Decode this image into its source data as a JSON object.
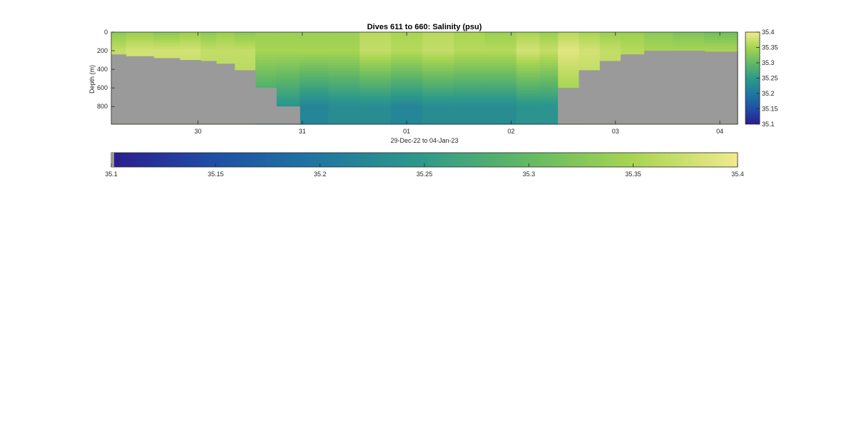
{
  "chart_data": {
    "type": "heatmap",
    "title": "Dives 611 to 660: Salinity (psu)",
    "xlabel": "29-Dec-22 to 04-Jan-23",
    "ylabel": "Depth (m)",
    "x_ticks": [
      "30",
      "31",
      "01",
      "02",
      "03",
      "04"
    ],
    "x_tick_days": [
      1,
      2,
      3,
      4,
      5,
      6
    ],
    "xlim_days": [
      0.17,
      6.17
    ],
    "ylim": [
      0,
      990
    ],
    "y_ticks": [
      0,
      200,
      400,
      600,
      800
    ],
    "y_reversed": true,
    "colorbar": {
      "min": 35.1,
      "max": 35.4,
      "ticks": [
        "35.1",
        "35.15",
        "35.2",
        "35.25",
        "35.3",
        "35.35",
        "35.4"
      ],
      "colormap": "parula-like",
      "colors": [
        "#2b1d8f",
        "#1f4fa6",
        "#1f78a0",
        "#2f9a8a",
        "#64b964",
        "#a7d552",
        "#f1ea8c"
      ]
    },
    "bathymetry_color": "#9a9a9a",
    "no_data_color": "#9a9a9a",
    "columns": [
      {
        "t": 0.17,
        "bottom": 240,
        "s_surface": 35.33,
        "s_200": 35.37,
        "s_800": 35.35
      },
      {
        "t": 0.45,
        "bottom": 260,
        "s_surface": 35.34,
        "s_200": 35.38,
        "s_800": 35.35
      },
      {
        "t": 0.7,
        "bottom": 280,
        "s_surface": 35.33,
        "s_200": 35.38,
        "s_800": 35.35
      },
      {
        "t": 0.95,
        "bottom": 300,
        "s_surface": 35.34,
        "s_200": 35.38,
        "s_800": 35.35
      },
      {
        "t": 1.1,
        "bottom": 310,
        "s_surface": 35.33,
        "s_200": 35.37,
        "s_800": 35.35
      },
      {
        "t": 1.25,
        "bottom": 340,
        "s_surface": 35.34,
        "s_200": 35.37,
        "s_800": 35.35
      },
      {
        "t": 1.45,
        "bottom": 410,
        "s_surface": 35.33,
        "s_200": 35.37,
        "s_800": 35.35
      },
      {
        "t": 1.65,
        "bottom": 600,
        "s_surface": 35.34,
        "s_200": 35.35,
        "s_800": 35.25
      },
      {
        "t": 1.85,
        "bottom": 800,
        "s_surface": 35.34,
        "s_200": 35.35,
        "s_800": 35.24
      },
      {
        "t": 2.1,
        "bottom": 990,
        "s_surface": 35.34,
        "s_200": 35.35,
        "s_800": 35.22
      },
      {
        "t": 2.4,
        "bottom": 990,
        "s_surface": 35.34,
        "s_200": 35.35,
        "s_800": 35.23
      },
      {
        "t": 2.7,
        "bottom": 990,
        "s_surface": 35.36,
        "s_200": 35.37,
        "s_800": 35.23
      },
      {
        "t": 3.0,
        "bottom": 990,
        "s_surface": 35.35,
        "s_200": 35.36,
        "s_800": 35.22
      },
      {
        "t": 3.3,
        "bottom": 990,
        "s_surface": 35.36,
        "s_200": 35.37,
        "s_800": 35.23
      },
      {
        "t": 3.6,
        "bottom": 990,
        "s_surface": 35.35,
        "s_200": 35.36,
        "s_800": 35.23
      },
      {
        "t": 3.9,
        "bottom": 990,
        "s_surface": 35.34,
        "s_200": 35.36,
        "s_800": 35.23
      },
      {
        "t": 4.2,
        "bottom": 990,
        "s_surface": 35.35,
        "s_200": 35.38,
        "s_800": 35.24
      },
      {
        "t": 4.35,
        "bottom": 990,
        "s_surface": 35.34,
        "s_200": 35.37,
        "s_800": 35.24
      },
      {
        "t": 4.55,
        "bottom": 600,
        "s_surface": 35.36,
        "s_200": 35.39,
        "s_800": 35.33
      },
      {
        "t": 4.75,
        "bottom": 410,
        "s_surface": 35.35,
        "s_200": 35.38,
        "s_800": 35.35
      },
      {
        "t": 4.95,
        "bottom": 310,
        "s_surface": 35.34,
        "s_200": 35.37,
        "s_800": 35.35
      },
      {
        "t": 5.15,
        "bottom": 240,
        "s_surface": 35.34,
        "s_200": 35.36,
        "s_800": 35.35
      },
      {
        "t": 5.4,
        "bottom": 200,
        "s_surface": 35.33,
        "s_200": 35.35,
        "s_800": 35.35
      },
      {
        "t": 5.7,
        "bottom": 200,
        "s_surface": 35.32,
        "s_200": 35.35,
        "s_800": 35.35
      },
      {
        "t": 6.0,
        "bottom": 210,
        "s_surface": 35.31,
        "s_200": 35.35,
        "s_800": 35.35
      }
    ]
  }
}
